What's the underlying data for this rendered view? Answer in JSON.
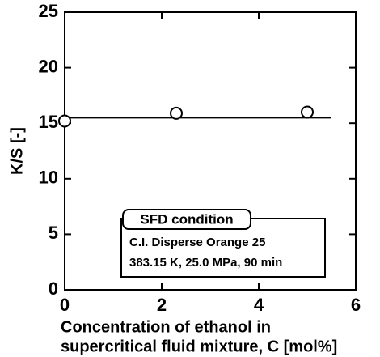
{
  "chart_data": {
    "type": "scatter",
    "xlabel": [
      "Concentration of ethanol in",
      "supercritical fluid mixture, C [mol%]"
    ],
    "ylabel": "K/S [-]",
    "series": [
      {
        "x": [
          0,
          2.3,
          5.0
        ],
        "values": [
          15.2,
          15.9,
          16.0
        ],
        "color": "#000000"
      }
    ],
    "fit": {
      "x": [
        0,
        5.5
      ],
      "values": [
        15.5,
        15.5
      ]
    },
    "xlim": [
      0,
      6
    ],
    "xticks": [
      0,
      2,
      4,
      6
    ],
    "ylim": [
      0,
      25
    ],
    "yticks": [
      0,
      5,
      10,
      15,
      20,
      25
    ],
    "annotation": {
      "title": "SFD condition",
      "lines": [
        "C.I. Disperse Orange 25",
        "383.15 K, 25.0 MPa, 90 min"
      ]
    }
  }
}
